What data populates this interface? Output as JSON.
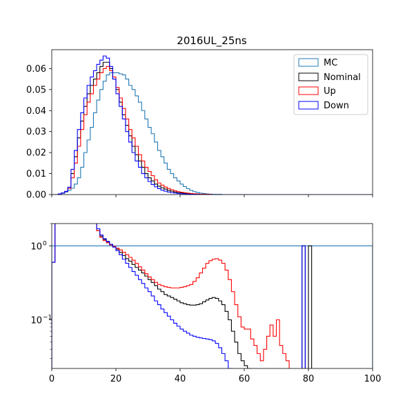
{
  "chart_data": [
    {
      "type": "step",
      "title": "2016UL_25ns",
      "xlim": [
        0,
        100
      ],
      "ylim": [
        0,
        0.069
      ],
      "yscale": "linear",
      "x_ticks": [
        "0",
        "20",
        "40",
        "60",
        "80",
        "100"
      ],
      "x_tick_labels_visible": false,
      "y_ticks": [
        {
          "value": 0.0,
          "label": "0.00"
        },
        {
          "value": 0.01,
          "label": "0.01"
        },
        {
          "value": 0.02,
          "label": "0.02"
        },
        {
          "value": 0.03,
          "label": "0.03"
        },
        {
          "value": 0.04,
          "label": "0.04"
        },
        {
          "value": 0.05,
          "label": "0.05"
        },
        {
          "value": 0.06,
          "label": "0.06"
        }
      ],
      "legend_position": "top-right",
      "bin_edges": {
        "start": 0,
        "step": 1
      },
      "series": [
        {
          "name": "MC",
          "color": "#1f77b4",
          "values": [
            0,
            0,
            0.0002,
            0.0006,
            0.0012,
            0.002,
            0.003,
            0.005,
            0.008,
            0.013,
            0.02,
            0.026,
            0.032,
            0.039,
            0.045,
            0.05,
            0.054,
            0.057,
            0.058,
            0.058,
            0.058,
            0.0575,
            0.057,
            0.055,
            0.052,
            0.05,
            0.047,
            0.044,
            0.04,
            0.036,
            0.032,
            0.029,
            0.025,
            0.021,
            0.018,
            0.015,
            0.012,
            0.01,
            0.008,
            0.0065,
            0.005,
            0.0038,
            0.0028,
            0.002,
            0.0014,
            0.001,
            0.0007,
            0.0005,
            0.0003,
            0.0002,
            0.0001,
            0.0001,
            0.0001,
            0,
            0,
            0,
            0,
            0,
            0,
            0,
            0,
            0,
            0,
            0,
            0,
            0,
            0,
            0,
            0,
            0,
            0,
            0,
            0,
            0,
            0,
            0,
            0,
            0,
            0,
            0,
            0,
            0,
            0,
            0,
            0,
            0,
            0,
            0,
            0,
            0,
            0,
            0,
            0,
            0,
            0,
            0,
            0,
            0,
            0,
            0
          ]
        },
        {
          "name": "Nominal",
          "color": "#000000",
          "values": [
            0,
            0,
            0.0003,
            0.0008,
            0.0015,
            0.003,
            0.01,
            0.018,
            0.027,
            0.035,
            0.042,
            0.048,
            0.052,
            0.055,
            0.058,
            0.061,
            0.063,
            0.063,
            0.06,
            0.055,
            0.05,
            0.044,
            0.038,
            0.033,
            0.028,
            0.023,
            0.019,
            0.016,
            0.013,
            0.01,
            0.008,
            0.0065,
            0.005,
            0.004,
            0.0032,
            0.0026,
            0.002,
            0.0016,
            0.0012,
            0.001,
            0.0008,
            0.0006,
            0.0004,
            0.0003,
            0.0002,
            0.0002,
            0.0001,
            0.0001,
            0.0001,
            0,
            0,
            0,
            0,
            0,
            0,
            0,
            0,
            0,
            0,
            0,
            0,
            0,
            0,
            0,
            0,
            0,
            0,
            0,
            0,
            0,
            0,
            0,
            0,
            0,
            0,
            0,
            0,
            0,
            0,
            0,
            0,
            0,
            0,
            0,
            0,
            0,
            0,
            0,
            0,
            0,
            0,
            0,
            0,
            0,
            0,
            0,
            0,
            0,
            0,
            0
          ]
        },
        {
          "name": "Up",
          "color": "#ff0000",
          "values": [
            0,
            0,
            0.0003,
            0.0008,
            0.0015,
            0.003,
            0.008,
            0.015,
            0.023,
            0.031,
            0.038,
            0.044,
            0.048,
            0.052,
            0.055,
            0.058,
            0.06,
            0.061,
            0.059,
            0.056,
            0.051,
            0.046,
            0.041,
            0.036,
            0.031,
            0.027,
            0.023,
            0.019,
            0.016,
            0.013,
            0.011,
            0.009,
            0.007,
            0.0055,
            0.0045,
            0.0036,
            0.0029,
            0.0023,
            0.0018,
            0.0014,
            0.0011,
            0.0009,
            0.0007,
            0.0005,
            0.0004,
            0.0003,
            0.0002,
            0.0002,
            0.0001,
            0.0001,
            0,
            0,
            0,
            0,
            0,
            0,
            0,
            0,
            0,
            0,
            0,
            0,
            0,
            0,
            0,
            0,
            0,
            0,
            0,
            0,
            0,
            0,
            0,
            0,
            0,
            0,
            0,
            0,
            0,
            0,
            0,
            0,
            0,
            0,
            0,
            0,
            0,
            0,
            0,
            0,
            0,
            0,
            0,
            0,
            0,
            0,
            0,
            0,
            0,
            0
          ]
        },
        {
          "name": "Down",
          "color": "#0000ff",
          "values": [
            0,
            0,
            0.0003,
            0.0008,
            0.0015,
            0.0035,
            0.012,
            0.021,
            0.031,
            0.039,
            0.046,
            0.052,
            0.056,
            0.059,
            0.062,
            0.064,
            0.066,
            0.065,
            0.061,
            0.055,
            0.048,
            0.042,
            0.036,
            0.03,
            0.025,
            0.02,
            0.016,
            0.013,
            0.01,
            0.008,
            0.0062,
            0.0048,
            0.0037,
            0.0028,
            0.0021,
            0.0016,
            0.0012,
            0.0009,
            0.0007,
            0.0005,
            0.0004,
            0.0003,
            0.0002,
            0.0002,
            0.0001,
            0.0001,
            0,
            0,
            0,
            0,
            0,
            0,
            0,
            0,
            0,
            0,
            0,
            0,
            0,
            0,
            0,
            0,
            0,
            0,
            0,
            0,
            0,
            0,
            0,
            0,
            0,
            0,
            0,
            0,
            0,
            0,
            0,
            0,
            0,
            0,
            0,
            0,
            0,
            0,
            0,
            0,
            0,
            0,
            0,
            0,
            0,
            0,
            0,
            0,
            0,
            0,
            0,
            0,
            0,
            0
          ]
        }
      ]
    },
    {
      "type": "step",
      "title": "",
      "xlim": [
        0,
        100
      ],
      "ylim": [
        0.022,
        2.0
      ],
      "yscale": "log",
      "x_ticks": [
        "0",
        "20",
        "40",
        "60",
        "80",
        "100"
      ],
      "y_major_ticks": [
        {
          "value": 0.1,
          "base": "10",
          "exp": "−1"
        },
        {
          "value": 1.0,
          "base": "10",
          "exp": "0"
        }
      ],
      "y_minor_ticks": [
        0.03,
        0.04,
        0.05,
        0.06,
        0.07,
        0.08,
        0.09,
        2.0
      ],
      "bin_edges": {
        "start": 0,
        "step": 1
      },
      "series": [
        {
          "name": "MC",
          "color": "#1f77b4",
          "values": [
            1,
            1,
            1,
            1,
            1,
            1,
            1,
            1,
            1,
            1,
            1,
            1,
            1,
            1,
            1,
            1,
            1,
            1,
            1,
            1,
            1,
            1,
            1,
            1,
            1,
            1,
            1,
            1,
            1,
            1,
            1,
            1,
            1,
            1,
            1,
            1,
            1,
            1,
            1,
            1,
            1,
            1,
            1,
            1,
            1,
            1,
            1,
            1,
            1,
            1,
            1,
            1,
            1,
            1,
            1,
            1,
            1,
            1,
            1,
            1,
            1,
            1,
            1,
            1,
            1,
            1,
            1,
            1,
            1,
            1,
            1,
            1,
            1,
            1,
            1,
            1,
            1,
            1,
            1,
            1,
            1,
            1,
            1,
            1,
            1,
            1,
            1,
            1,
            1,
            1,
            1,
            1,
            1,
            1,
            1,
            1,
            1,
            1,
            1,
            1
          ]
        },
        {
          "name": "Nominal",
          "color": "#000000",
          "values": [
            0.6,
            2.5,
            2.5,
            2.5,
            2.5,
            2.5,
            2.5,
            2.5,
            2.5,
            2.5,
            2.5,
            2.5,
            2.5,
            2.2,
            1.6,
            1.35,
            1.22,
            1.13,
            1.05,
            0.97,
            0.9,
            0.82,
            0.74,
            0.67,
            0.62,
            0.56,
            0.51,
            0.47,
            0.43,
            0.39,
            0.35,
            0.32,
            0.29,
            0.26,
            0.24,
            0.22,
            0.21,
            0.2,
            0.19,
            0.18,
            0.17,
            0.165,
            0.16,
            0.158,
            0.158,
            0.16,
            0.165,
            0.175,
            0.185,
            0.195,
            0.2,
            0.195,
            0.18,
            0.16,
            0.13,
            0.1,
            0.07,
            0.05,
            0.035,
            0.028,
            0.024,
            0.022,
            0.02,
            0.02,
            0.02,
            0.02,
            0.02,
            0.02,
            0.02,
            0.02,
            0.02,
            0.02,
            0.02,
            0.02,
            0.02,
            0.02,
            0.02,
            0.02,
            1,
            0.02,
            1,
            0.02,
            0.02,
            0.02,
            0.02,
            0.02,
            0.02,
            0.02,
            0.02,
            0.02,
            0.02,
            0.02,
            0.02,
            0.02,
            0.02,
            0.02,
            0.02,
            0.02,
            0.02,
            0.02
          ]
        },
        {
          "name": "Up",
          "color": "#ff0000",
          "values": [
            0.6,
            2.5,
            2.5,
            2.5,
            2.5,
            2.5,
            2.5,
            2.5,
            2.5,
            2.5,
            2.5,
            2.5,
            2.5,
            2.2,
            1.6,
            1.3,
            1.18,
            1.1,
            1.03,
            0.98,
            0.93,
            0.88,
            0.82,
            0.76,
            0.7,
            0.64,
            0.58,
            0.52,
            0.47,
            0.42,
            0.38,
            0.35,
            0.32,
            0.3,
            0.29,
            0.28,
            0.275,
            0.27,
            0.27,
            0.27,
            0.275,
            0.28,
            0.29,
            0.3,
            0.33,
            0.37,
            0.43,
            0.5,
            0.58,
            0.63,
            0.66,
            0.67,
            0.64,
            0.58,
            0.47,
            0.35,
            0.24,
            0.16,
            0.11,
            0.08,
            0.075,
            0.075,
            0.055,
            0.045,
            0.035,
            0.028,
            0.04,
            0.06,
            0.085,
            0.06,
            0.1,
            0.045,
            0.035,
            0.028,
            0.02,
            0.02,
            0.02,
            0.02,
            0.02,
            0.02,
            0.02,
            0.02,
            0.02,
            0.02,
            0.02,
            0.02,
            0.02,
            0.02,
            0.02,
            0.02,
            0.02,
            0.02,
            0.02,
            0.02,
            0.02,
            0.02,
            0.02,
            0.02,
            0.02,
            0.02
          ]
        },
        {
          "name": "Down",
          "color": "#0000ff",
          "values": [
            0.6,
            2.5,
            2.5,
            2.5,
            2.5,
            2.5,
            2.5,
            2.5,
            2.5,
            2.5,
            2.5,
            2.5,
            2.5,
            2.2,
            1.7,
            1.4,
            1.25,
            1.15,
            1.05,
            0.96,
            0.86,
            0.76,
            0.66,
            0.58,
            0.51,
            0.45,
            0.4,
            0.35,
            0.31,
            0.27,
            0.24,
            0.21,
            0.18,
            0.16,
            0.14,
            0.125,
            0.112,
            0.1,
            0.09,
            0.082,
            0.075,
            0.07,
            0.066,
            0.062,
            0.06,
            0.058,
            0.057,
            0.056,
            0.055,
            0.054,
            0.052,
            0.048,
            0.042,
            0.035,
            0.028,
            0.022,
            0.02,
            0.02,
            0.02,
            0.02,
            0.02,
            0.02,
            0.02,
            0.02,
            0.02,
            0.02,
            0.02,
            0.02,
            0.02,
            0.02,
            0.02,
            0.02,
            0.02,
            0.02,
            0.02,
            0.02,
            0.02,
            0.02,
            1,
            0.02,
            0.02,
            0.02,
            0.02,
            0.02,
            0.02,
            0.02,
            0.02,
            0.02,
            0.02,
            0.02,
            0.02,
            0.02,
            0.02,
            0.02,
            0.02,
            0.02,
            0.02,
            0.02,
            0.02,
            0.02
          ]
        }
      ]
    }
  ]
}
